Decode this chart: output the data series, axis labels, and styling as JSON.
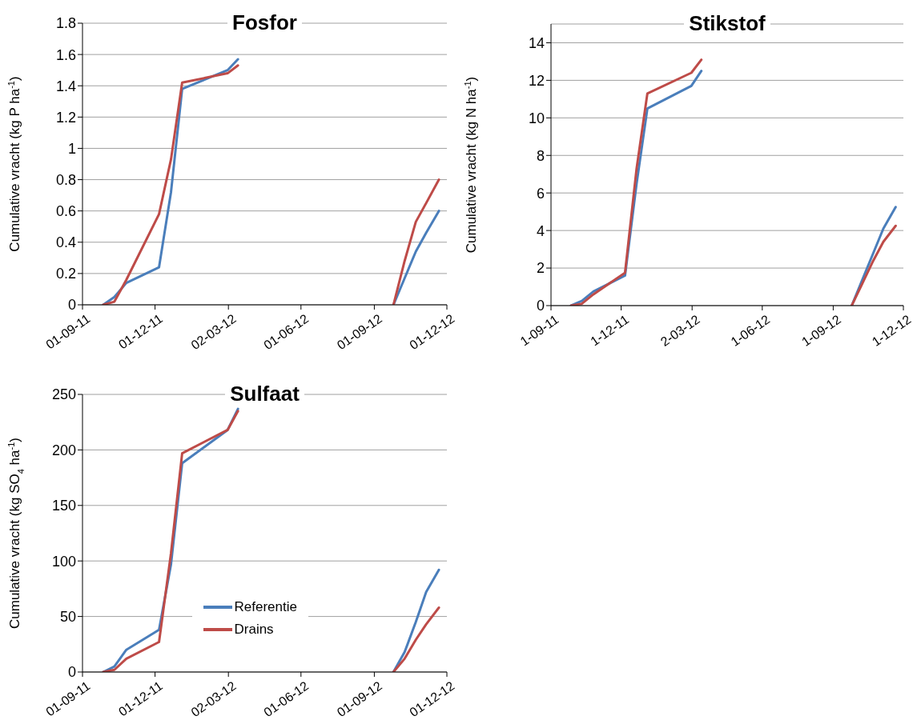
{
  "chart_data": [
    {
      "type": "line",
      "title": "Fosfor",
      "ylabel": "Cumulative vracht (kg P ha$^{-1}$)",
      "x": [
        "2011-09-27",
        "2011-10-11",
        "2011-10-26",
        "2011-12-06",
        "2011-12-21",
        "2012-01-04",
        "2012-03-01",
        "2012-03-14",
        "2012-06-15",
        "2012-09-25",
        "2012-10-09",
        "2012-10-23",
        "2012-11-05",
        "2012-11-21"
      ],
      "series": [
        {
          "color": "#4a7ebb",
          "values": [
            0,
            0.05,
            0.14,
            0.24,
            0.72,
            1.38,
            1.5,
            1.57,
            null,
            0,
            0.17,
            0.34,
            0.46,
            0.6
          ]
        },
        {
          "color": "#be4b48",
          "values": [
            0,
            0.02,
            0.16,
            0.58,
            0.93,
            1.42,
            1.48,
            1.53,
            null,
            0,
            0.28,
            0.53,
            0.65,
            0.8
          ]
        }
      ],
      "xlim": [
        "2011-09-01",
        "2012-12-01"
      ],
      "xticks": [
        {
          "value": "2011-09-01",
          "label": "01-09-11"
        },
        {
          "value": "2011-12-01",
          "label": "01-12-11"
        },
        {
          "value": "2012-03-02",
          "label": "02-03-12"
        },
        {
          "value": "2012-06-01",
          "label": "01-06-12"
        },
        {
          "value": "2012-09-01",
          "label": "01-09-12"
        },
        {
          "value": "2012-12-01",
          "label": "01-12-12"
        }
      ],
      "ylim": [
        0,
        1.8
      ],
      "yticks": [
        0,
        0.2,
        0.4,
        0.6,
        0.8,
        1,
        1.2,
        1.4,
        1.6,
        1.8
      ],
      "grid": "y",
      "legend": false,
      "marker": "none",
      "line_style": "solid"
    },
    {
      "type": "line",
      "title": "Stikstof",
      "ylabel": "Cumulative vracht (kg N ha$^{-1}$)",
      "x": [
        "2011-09-27",
        "2011-10-11",
        "2011-10-26",
        "2011-12-06",
        "2011-12-21",
        "2012-01-04",
        "2012-03-01",
        "2012-03-14",
        "2012-06-15",
        "2012-09-25",
        "2012-10-09",
        "2012-10-23",
        "2012-11-05",
        "2012-11-21"
      ],
      "series": [
        {
          "color": "#4a7ebb",
          "values": [
            0,
            0.25,
            0.75,
            1.6,
            6.5,
            10.5,
            11.7,
            12.5,
            null,
            0,
            1.4,
            2.8,
            4.1,
            5.25
          ]
        },
        {
          "color": "#be4b48",
          "values": [
            0,
            0.1,
            0.6,
            1.75,
            7.3,
            11.3,
            12.4,
            13.1,
            null,
            0,
            1.2,
            2.4,
            3.4,
            4.25
          ]
        }
      ],
      "xlim": [
        "2011-09-01",
        "2012-12-01"
      ],
      "xticks": [
        {
          "value": "2011-09-01",
          "label": "1-09-11"
        },
        {
          "value": "2011-12-01",
          "label": "1-12-11"
        },
        {
          "value": "2012-03-02",
          "label": "2-03-12"
        },
        {
          "value": "2012-06-01",
          "label": "1-06-12"
        },
        {
          "value": "2012-09-01",
          "label": "1-09-12"
        },
        {
          "value": "2012-12-01",
          "label": "1-12-12"
        }
      ],
      "ylim": [
        0,
        15
      ],
      "yticks": [
        0,
        2,
        4,
        6,
        8,
        10,
        12,
        14
      ],
      "grid": "y",
      "legend": false,
      "marker": "none",
      "line_style": "solid"
    },
    {
      "type": "line",
      "title": "Sulfaat",
      "ylabel": "Cumulative vracht (kg SO$_{4}$ ha$^{-1}$)",
      "x": [
        "2011-09-27",
        "2011-10-11",
        "2011-10-26",
        "2011-12-06",
        "2011-12-21",
        "2012-01-04",
        "2012-03-01",
        "2012-03-14",
        "2012-06-15",
        "2012-09-25",
        "2012-10-09",
        "2012-10-23",
        "2012-11-05",
        "2012-11-21"
      ],
      "series": [
        {
          "name": "Referentie",
          "color": "#4a7ebb",
          "values": [
            0,
            5,
            20,
            38,
            97,
            188,
            218,
            237,
            null,
            0,
            18,
            45,
            72,
            92
          ]
        },
        {
          "name": "Drains",
          "color": "#be4b48",
          "values": [
            0,
            2,
            12,
            27,
            107,
            197,
            218,
            235,
            null,
            0,
            12,
            29,
            43,
            58
          ]
        }
      ],
      "xlim": [
        "2011-09-01",
        "2012-12-01"
      ],
      "xticks": [
        {
          "value": "2011-09-01",
          "label": "01-09-11"
        },
        {
          "value": "2011-12-01",
          "label": "01-12-11"
        },
        {
          "value": "2012-03-02",
          "label": "02-03-12"
        },
        {
          "value": "2012-06-01",
          "label": "01-06-12"
        },
        {
          "value": "2012-09-01",
          "label": "01-09-12"
        },
        {
          "value": "2012-12-01",
          "label": "01-12-12"
        }
      ],
      "ylim": [
        0,
        250
      ],
      "yticks": [
        0,
        50,
        100,
        150,
        200,
        250
      ],
      "grid": "y",
      "legend": "bottom",
      "marker": "none",
      "line_style": "solid"
    }
  ]
}
